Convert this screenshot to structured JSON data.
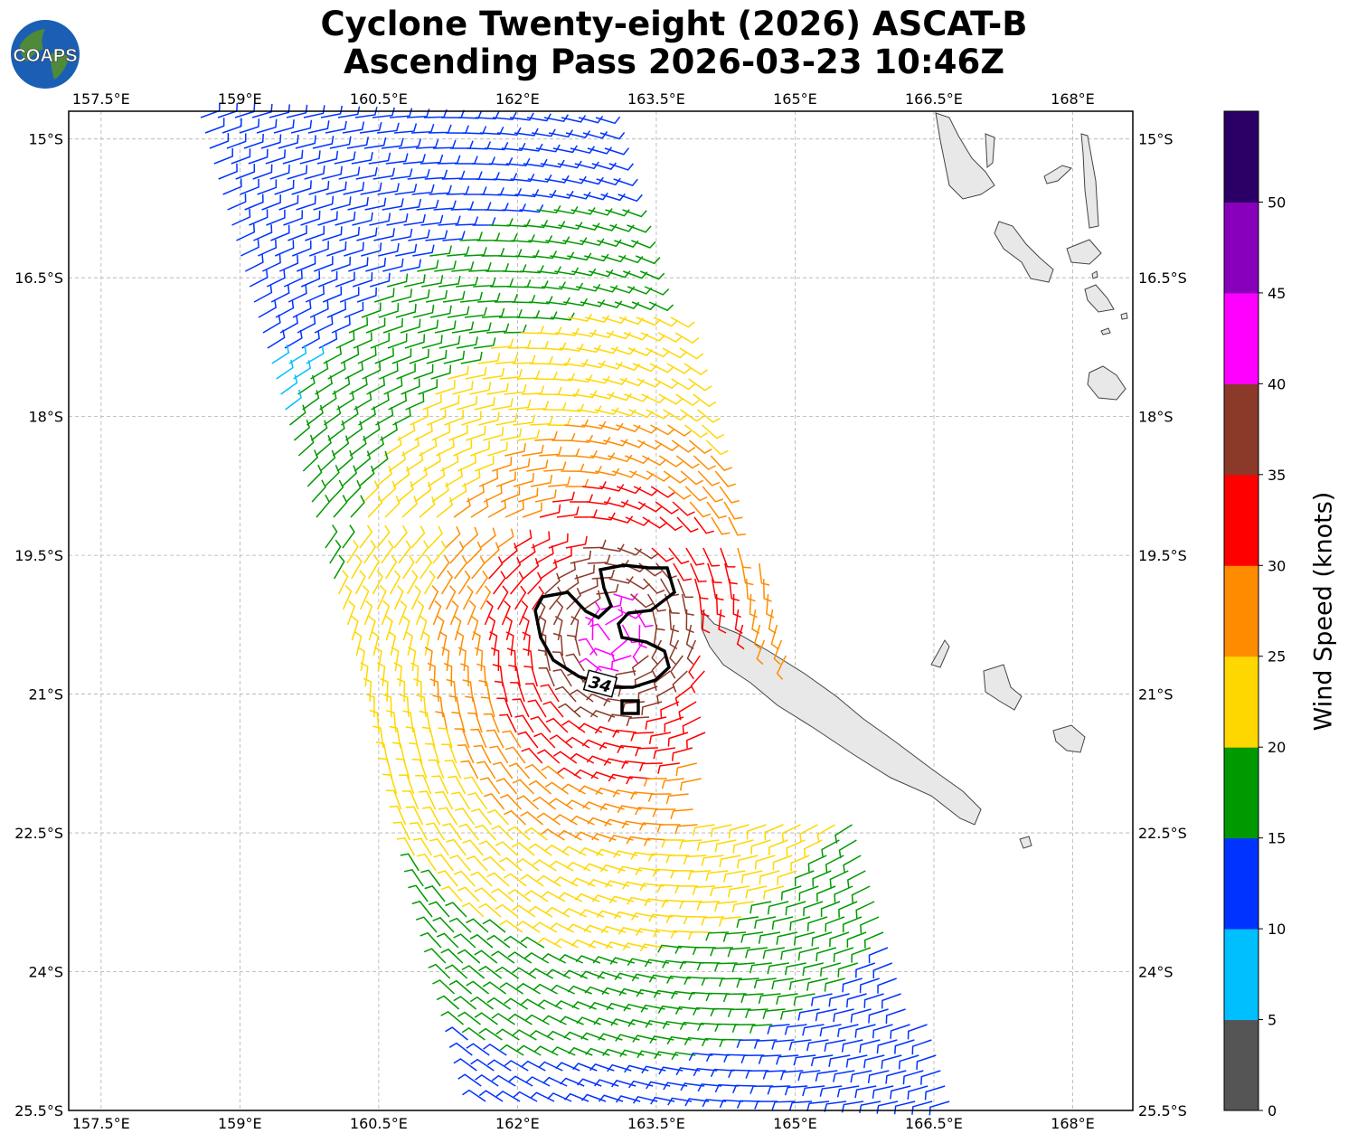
{
  "title": {
    "line1": "Cyclone Twenty-eight (2026) ASCAT-B",
    "line2": "Ascending Pass 2026-03-23 10:46Z"
  },
  "logo": {
    "text": "COAPS",
    "ocean_color": "#1a5fb4",
    "land_color": "#4f8a3a"
  },
  "map": {
    "lon_ticks": [
      "157.5°E",
      "159°E",
      "160.5°E",
      "162°E",
      "163.5°E",
      "165°E",
      "166.5°E",
      "168°E"
    ],
    "lat_ticks": [
      "15°S",
      "16.5°S",
      "18°S",
      "19.5°S",
      "21°S",
      "22.5°S",
      "24°S",
      "25.5°S"
    ],
    "lon_range": [
      157.15,
      168.65
    ],
    "lat_range": [
      -14.7,
      -25.5
    ],
    "grid": true,
    "contour_label": "34",
    "land_fill": "#e8e8e8",
    "coastline": "#444444"
  },
  "colorbar": {
    "label": "Wind Speed (knots)",
    "ticks": [
      "0",
      "5",
      "10",
      "15",
      "20",
      "25",
      "30",
      "35",
      "40",
      "45",
      "50"
    ],
    "colors": [
      "#555555",
      "#00bfff",
      "#0033ff",
      "#009900",
      "#ffd700",
      "#ff8c00",
      "#ff0000",
      "#8b3a2a",
      "#ff00ff",
      "#8800bb",
      "#2a0066"
    ]
  }
}
